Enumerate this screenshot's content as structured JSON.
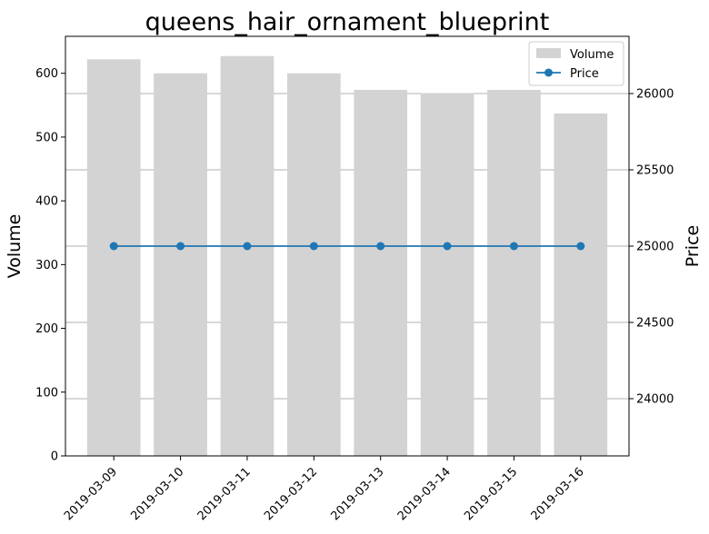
{
  "chart_data": {
    "type": "bar+line",
    "title": "queens_hair_ornament_blueprint",
    "categories": [
      "2019-03-09",
      "2019-03-10",
      "2019-03-11",
      "2019-03-12",
      "2019-03-13",
      "2019-03-14",
      "2019-03-15",
      "2019-03-16"
    ],
    "series": [
      {
        "name": "Volume",
        "type": "bar",
        "axis": "left",
        "color": "#d3d3d3",
        "values": [
          622,
          600,
          627,
          600,
          574,
          569,
          574,
          537
        ]
      },
      {
        "name": "Price",
        "type": "line",
        "axis": "right",
        "color": "#1f77b4",
        "marker": "circle",
        "values": [
          25000,
          25000,
          25000,
          25000,
          25000,
          25000,
          25000,
          25000
        ]
      }
    ],
    "y_left": {
      "label": "Volume",
      "ylim": [
        0,
        658
      ],
      "ticks": [
        0,
        100,
        200,
        300,
        400,
        500,
        600
      ]
    },
    "y_right": {
      "label": "Price",
      "ylim": [
        23625,
        26375
      ],
      "ticks": [
        24000,
        24500,
        25000,
        25500,
        26000
      ]
    },
    "grid": "horizontal (right axis ticks)",
    "legend": "top-right",
    "xlabel": ""
  }
}
